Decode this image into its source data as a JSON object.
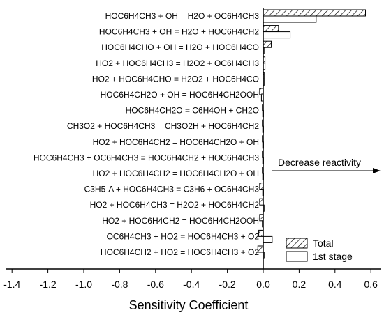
{
  "chart_data": {
    "type": "bar",
    "orientation": "horizontal",
    "xlabel": "Sensitivity Coefficient",
    "ylabel": "",
    "xlim": [
      -1.5,
      0.6
    ],
    "x_ticks": [
      "-1.4",
      "-1.2",
      "-1.0",
      "-0.8",
      "-0.6",
      "-0.4",
      "-0.2",
      "0.0",
      "0.2",
      "0.4",
      "0.6"
    ],
    "categories": [
      "HOC6H4CH3 + OH = H2O + OC6H4CH3",
      "HOC6H4CH3 + OH = H2O + HOC6H4CH2",
      "HOC6H4CHO + OH = H2O + HOC6H4CO",
      "HO2 + HOC6H4CH3 = H2O2 + OC6H4CH3",
      "HO2 + HOC6H4CHO = H2O2 + HOC6H4CO",
      "HOC6H4CH2O + OH = HOC6H4CH2OOH",
      "HOC6H4CH2O = C6H4OH + CH2O",
      "CH3O2 + HOC6H4CH3 = CH3O2H + HOC6H4CH2",
      "HO2 + HOC6H4CH2 = HOC6H4CH2O + OH",
      "HOC6H4CH3 + OC6H4CH3 = HOC6H4CH2 + HOC6H4CH3",
      "HO2 + HOC6H4CH2 = HOC6H4CH2O + OH",
      "C3H5-A + HOC6H4CH3 = C3H6 + OC6H4CH3",
      "HO2 + HOC6H4CH3 = H2O2 + HOC6H4CH2",
      "HO2 + HOC6H4CH2 = HOC6H4CH2OOH",
      "OC6H4CH3 + HO2 = HOC6H4CH3 + O2",
      "HOC6H4CH2 + HO2 = HOC6H4CH3 + O2"
    ],
    "series": [
      {
        "name": "Total",
        "pattern": "hatched",
        "values": [
          0.57,
          0.085,
          0.045,
          0.01,
          0.005,
          -0.02,
          -0.005,
          -0.005,
          -0.005,
          -0.005,
          -0.005,
          -0.02,
          -0.02,
          -0.02,
          -0.025,
          -0.03
        ]
      },
      {
        "name": "1st stage",
        "pattern": "open",
        "values": [
          0.295,
          0.15,
          0.0,
          0.01,
          0.005,
          -0.01,
          -0.003,
          -0.003,
          -0.003,
          -0.003,
          -0.003,
          -0.003,
          0.005,
          -0.005,
          0.05,
          0.005
        ]
      }
    ],
    "annotation": "Decrease reactivity",
    "legend_position": "bottom-right",
    "grid": false
  }
}
